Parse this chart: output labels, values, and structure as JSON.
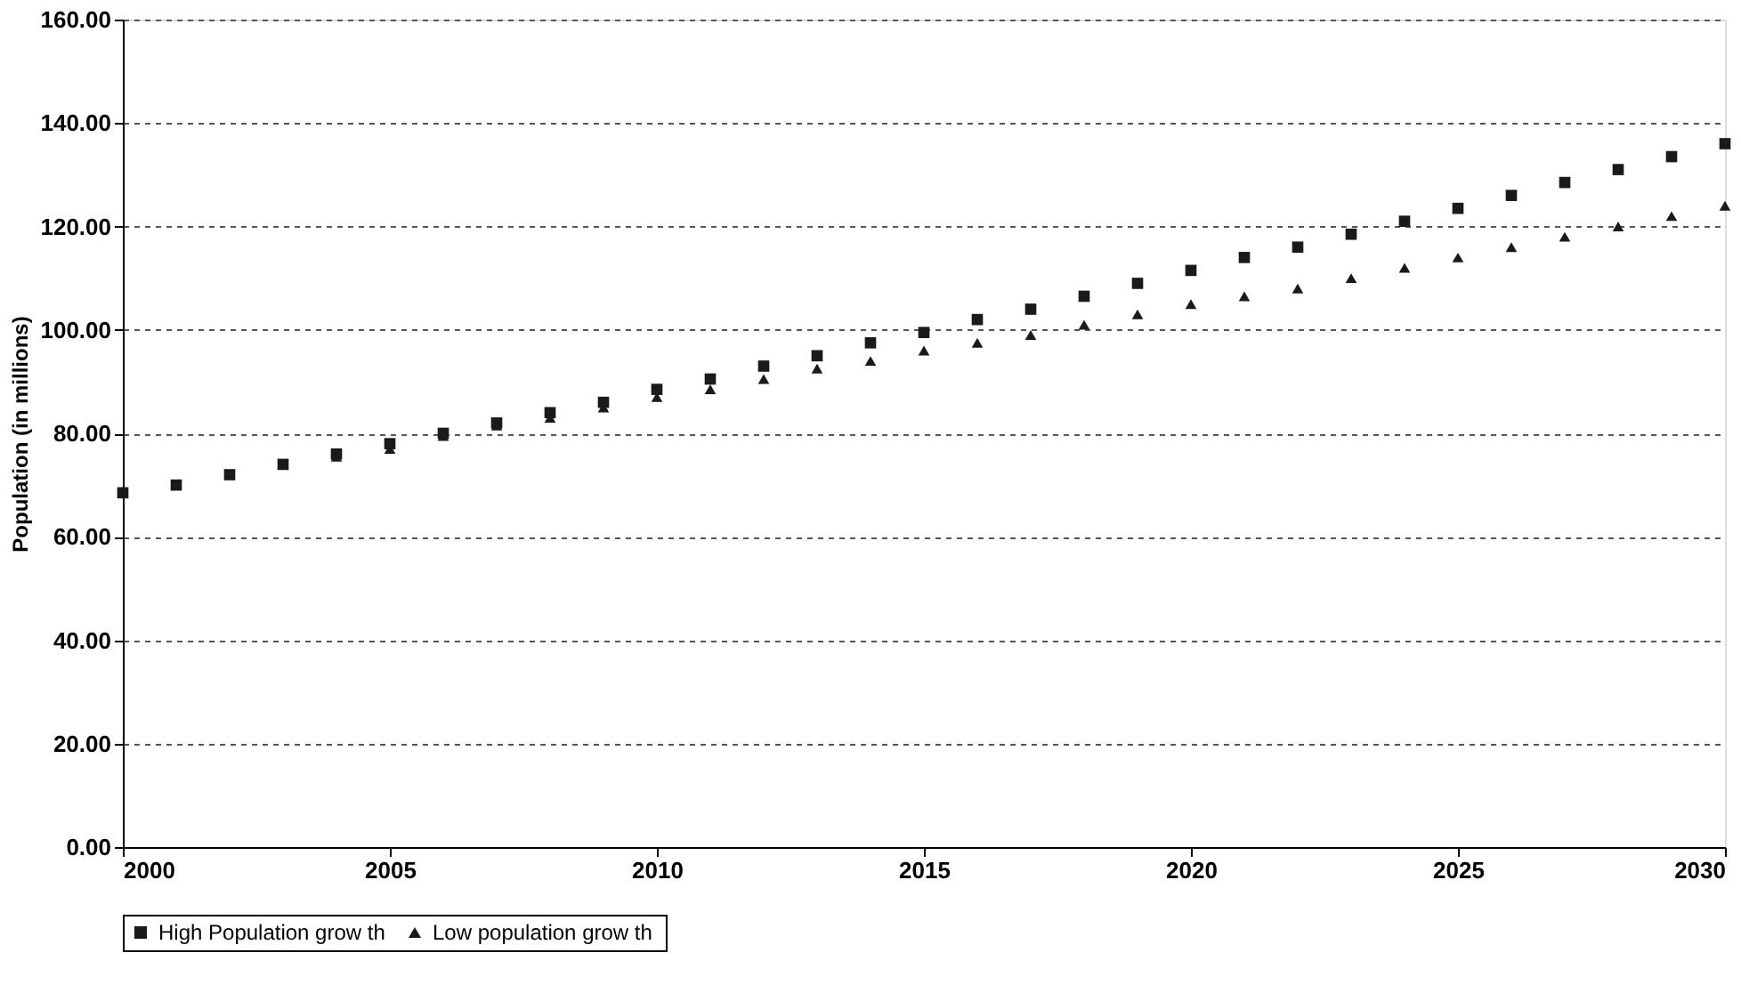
{
  "chart_data": {
    "type": "scatter",
    "ylabel": "Population (in millions)",
    "x": [
      2000,
      2001,
      2002,
      2003,
      2004,
      2005,
      2006,
      2007,
      2008,
      2009,
      2010,
      2011,
      2012,
      2013,
      2014,
      2015,
      2016,
      2017,
      2018,
      2019,
      2020,
      2021,
      2022,
      2023,
      2024,
      2025,
      2026,
      2027,
      2028,
      2029,
      2030
    ],
    "series": [
      {
        "name": "High Population grow th",
        "color": "#1a1a1a",
        "marker": "square",
        "values": [
          68.5,
          70,
          72,
          74,
          76,
          78,
          80,
          82,
          84,
          86,
          88.5,
          90.5,
          93,
          95,
          97.5,
          99.5,
          102,
          104,
          106.5,
          109,
          111.5,
          114,
          116,
          118.5,
          121,
          123.5,
          126,
          128.5,
          131,
          133.5,
          136
        ]
      },
      {
        "name": "Low  population grow th",
        "color": "#1a1a1a",
        "marker": "triangle",
        "values": [
          null,
          null,
          null,
          null,
          75.5,
          77,
          79.5,
          81.5,
          83,
          85,
          87,
          88.5,
          90.5,
          92.5,
          94,
          96,
          97.5,
          99,
          101,
          103,
          105,
          106.5,
          108,
          110,
          112,
          114,
          116,
          118,
          120,
          122,
          124
        ]
      }
    ],
    "xlim": [
      2000,
      2030
    ],
    "xticks": [
      2000,
      2005,
      2010,
      2015,
      2020,
      2025,
      2030
    ],
    "ylim": [
      0,
      160
    ],
    "yticks": [
      {
        "value": 0,
        "label": "0.00"
      },
      {
        "value": 20,
        "label": "20.00"
      },
      {
        "value": 40,
        "label": "40.00"
      },
      {
        "value": 60,
        "label": "60.00"
      },
      {
        "value": 80,
        "label": "80.00"
      },
      {
        "value": 100,
        "label": "100.00"
      },
      {
        "value": 120,
        "label": "120.00"
      },
      {
        "value": 140,
        "label": "140.00"
      },
      {
        "value": 160,
        "label": "160.00"
      }
    ],
    "grid": "y",
    "legend": "bottom"
  }
}
